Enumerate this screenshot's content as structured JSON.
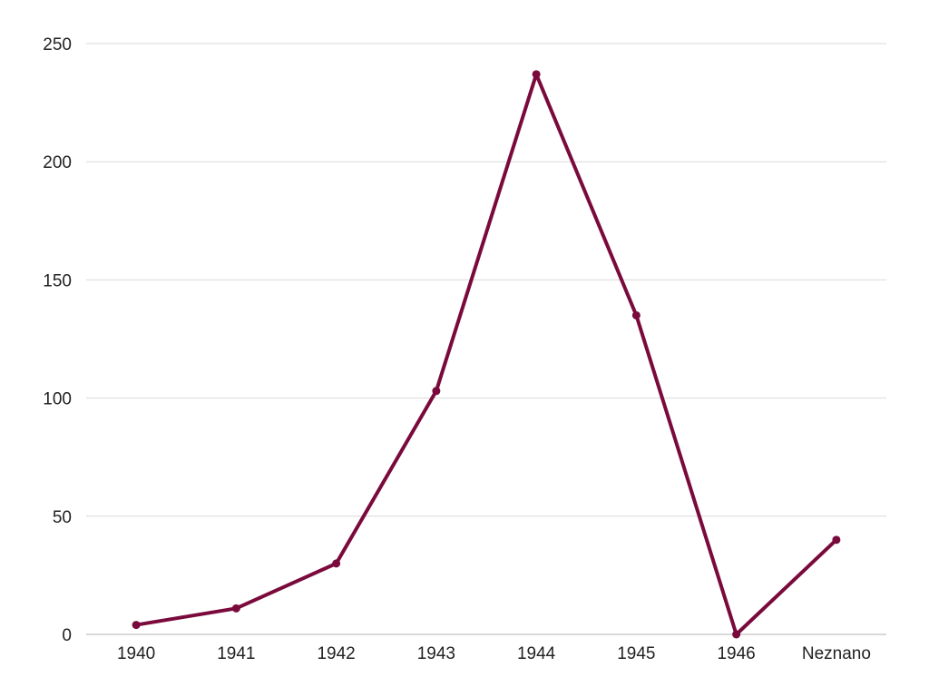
{
  "chart_data": {
    "type": "line",
    "title": "",
    "xlabel": "",
    "ylabel": "",
    "categories": [
      "1940",
      "1941",
      "1942",
      "1943",
      "1944",
      "1945",
      "1946",
      "Neznano"
    ],
    "series": [
      {
        "values": [
          4,
          11,
          30,
          103,
          237,
          135,
          0,
          40
        ]
      }
    ],
    "ylim": [
      0,
      250
    ],
    "yticks": [
      0,
      50,
      100,
      150,
      200,
      250
    ],
    "grid": true,
    "legend": "none",
    "line_color": "#7a0a3c"
  }
}
